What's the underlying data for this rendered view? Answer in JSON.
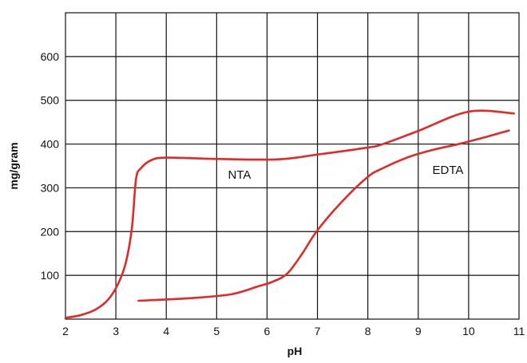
{
  "chart_data": {
    "type": "line",
    "title": "",
    "xlabel": "pH",
    "ylabel": "mg/gram",
    "xlim": [
      2,
      11
    ],
    "ylim": [
      0,
      700
    ],
    "x_ticks": [
      "2",
      "3",
      "4",
      "5",
      "6",
      "7",
      "8",
      "9",
      "10",
      "11"
    ],
    "y_ticks": [
      "100",
      "200",
      "300",
      "400",
      "500",
      "600"
    ],
    "grid": true,
    "line_color": "#e02a2a",
    "series": [
      {
        "name": "NTA",
        "points": [
          [
            2.0,
            3
          ],
          [
            2.3,
            9
          ],
          [
            2.6,
            22
          ],
          [
            2.85,
            45
          ],
          [
            3.05,
            82
          ],
          [
            3.2,
            130
          ],
          [
            3.32,
            210
          ],
          [
            3.4,
            320
          ],
          [
            3.5,
            345
          ],
          [
            3.7,
            363
          ],
          [
            4.0,
            369
          ],
          [
            5.0,
            366
          ],
          [
            6.2,
            365
          ],
          [
            7.0,
            376
          ],
          [
            8.0,
            392
          ],
          [
            8.3,
            400
          ],
          [
            9.0,
            430
          ],
          [
            10.0,
            474
          ],
          [
            10.9,
            470
          ]
        ]
      },
      {
        "name": "EDTA",
        "points": [
          [
            3.45,
            42
          ],
          [
            4.5,
            48
          ],
          [
            5.3,
            57
          ],
          [
            5.8,
            74
          ],
          [
            6.1,
            85
          ],
          [
            6.4,
            104
          ],
          [
            6.7,
            150
          ],
          [
            7.0,
            203
          ],
          [
            7.5,
            270
          ],
          [
            8.0,
            325
          ],
          [
            8.3,
            345
          ],
          [
            8.8,
            370
          ],
          [
            9.3,
            387
          ],
          [
            9.8,
            400
          ],
          [
            10.4,
            418
          ],
          [
            10.8,
            431
          ]
        ]
      }
    ]
  }
}
